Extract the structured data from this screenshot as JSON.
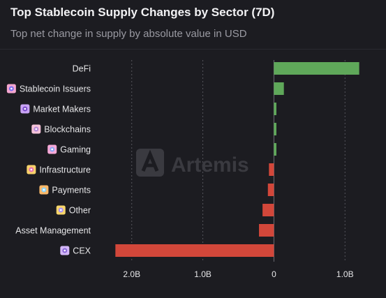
{
  "header": {
    "title": "Top Stablecoin Supply Changes by Sector (7D)",
    "subtitle": "Top net change in supply by absolute value in USD"
  },
  "watermark": {
    "text": "Artemis"
  },
  "colors": {
    "positive": "#5fa85a",
    "negative": "#d2473a",
    "grid": "#55555c",
    "background": "#1c1c21"
  },
  "chart_data": {
    "type": "bar",
    "orientation": "horizontal",
    "title": "Top Stablecoin Supply Changes by Sector (7D)",
    "subtitle": "Top net change in supply by absolute value in USD",
    "unit": "USD",
    "categories": [
      {
        "name": "DeFi",
        "icon": null
      },
      {
        "name": "Stablecoin Issuers",
        "icon": "stablecoin-issuers-icon"
      },
      {
        "name": "Market Makers",
        "icon": "market-makers-icon"
      },
      {
        "name": "Blockchains",
        "icon": "blockchains-icon"
      },
      {
        "name": "Gaming",
        "icon": "gaming-icon"
      },
      {
        "name": "Infrastructure",
        "icon": "infrastructure-icon"
      },
      {
        "name": "Payments",
        "icon": "payments-icon"
      },
      {
        "name": "Other",
        "icon": "other-icon"
      },
      {
        "name": "Asset Management",
        "icon": null
      },
      {
        "name": "CEX",
        "icon": "cex-icon"
      }
    ],
    "values": [
      1200000000,
      140000000,
      35000000,
      35000000,
      35000000,
      -70000000,
      -85000000,
      -160000000,
      -210000000,
      -2230000000
    ],
    "xlim": [
      -2400000000,
      1400000000
    ],
    "xticks": [
      {
        "value": -2000000000,
        "label": "2.0B"
      },
      {
        "value": -1000000000,
        "label": "1.0B"
      },
      {
        "value": 0,
        "label": "0"
      },
      {
        "value": 1000000000,
        "label": "1.0B"
      }
    ],
    "grid": "vertical-dashed",
    "legend": "none"
  }
}
